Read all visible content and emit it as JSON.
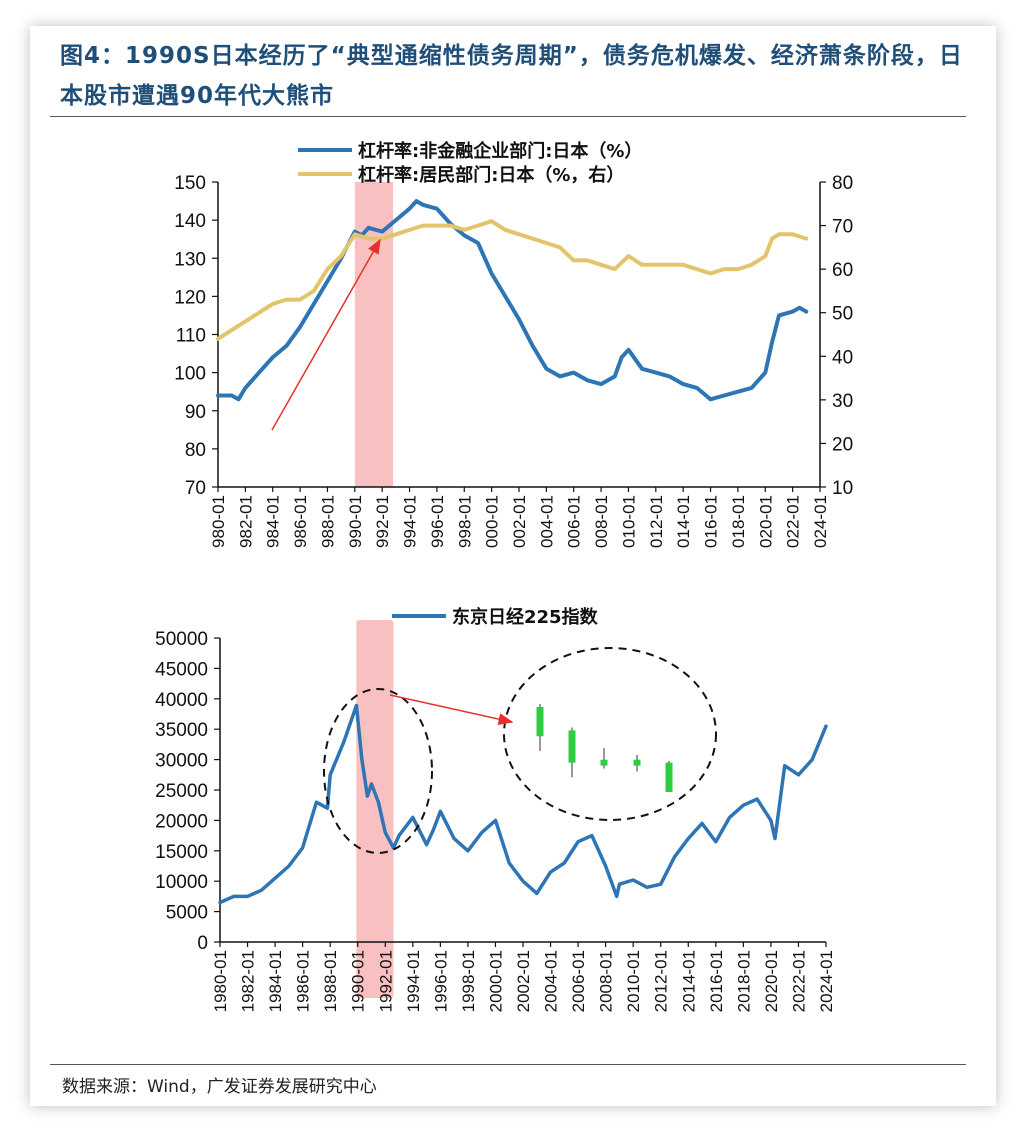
{
  "title": "图4：1990S日本经历了“典型通缩性债务周期”，债务危机爆发、经济萧条阶段，日本股市遭遇90年代大熊市",
  "source": "数据来源：Wind，广发证券发展研究中心",
  "colors": {
    "blue": "#2e75b6",
    "gold": "#e2c46a",
    "highlight": "#f8c0c0",
    "arrow": "#e8302a",
    "title": "#1f4e79",
    "candle": "#2ecc40"
  },
  "chart_data": [
    {
      "type": "line",
      "legend": [
        "杠杆率:非金融企业部门:日本（%）",
        "杠杆率:居民部门:日本（%，右）"
      ],
      "left_ticks": [
        "150",
        "140",
        "130",
        "120",
        "110",
        "100",
        "90",
        "80",
        "70"
      ],
      "right_ticks": [
        "80",
        "70",
        "60",
        "50",
        "40",
        "30",
        "20",
        "10"
      ],
      "ylim_left": [
        70,
        150
      ],
      "ylim_right": [
        10,
        80
      ],
      "xlim": [
        1980,
        2024
      ],
      "x_ticks": [
        "980-01",
        "982-01",
        "984-01",
        "986-01",
        "988-01",
        "990-01",
        "992-01",
        "994-01",
        "996-01",
        "998-01",
        "000-01",
        "002-01",
        "004-01",
        "006-01",
        "008-01",
        "010-01",
        "012-01",
        "014-01",
        "016-01",
        "018-01",
        "020-01",
        "022-01",
        "024-01"
      ],
      "highlight_range": [
        1990.0,
        1992.8
      ],
      "series": [
        {
          "name": "杠杆率:非金融企业部门:日本（%）",
          "axis": "left",
          "color": "#2e75b6",
          "x": [
            1980,
            1981,
            1981.5,
            1982,
            1983,
            1984,
            1985,
            1986,
            1987,
            1988,
            1989,
            1990,
            1990.5,
            1991,
            1992,
            1993,
            1994,
            1994.5,
            1995,
            1996,
            1997,
            1998,
            1999,
            2000,
            2001,
            2002,
            2003,
            2004,
            2005,
            2006,
            2007,
            2008,
            2009,
            2009.5,
            2010,
            2011,
            2012,
            2013,
            2014,
            2015,
            2016,
            2017,
            2018,
            2019,
            2020,
            2020.5,
            2021,
            2022,
            2022.5,
            2023
          ],
          "y": [
            94,
            94,
            93,
            96,
            100,
            104,
            107,
            112,
            118,
            124,
            130,
            137,
            136,
            138,
            137,
            140,
            143,
            145,
            144,
            143,
            139,
            136,
            134,
            126,
            120,
            114,
            107,
            101,
            99,
            100,
            98,
            97,
            99,
            104,
            106,
            101,
            100,
            99,
            97,
            96,
            93,
            94,
            95,
            96,
            100,
            108,
            115,
            116,
            117,
            116
          ]
        },
        {
          "name": "杠杆率:居民部门:日本（%，右）",
          "axis": "right",
          "color": "#e2c46a",
          "x": [
            1980,
            1981,
            1982,
            1983,
            1984,
            1985,
            1986,
            1987,
            1988,
            1989,
            1990,
            1991,
            1992,
            1993,
            1994,
            1995,
            1996,
            1997,
            1998,
            1999,
            2000,
            2001,
            2002,
            2003,
            2004,
            2005,
            2006,
            2007,
            2008,
            2009,
            2010,
            2011,
            2012,
            2013,
            2014,
            2015,
            2016,
            2017,
            2018,
            2019,
            2020,
            2020.5,
            2021,
            2022,
            2023
          ],
          "y": [
            44,
            46,
            48,
            50,
            52,
            53,
            53,
            55,
            60,
            63,
            68,
            67,
            67,
            68,
            69,
            70,
            70,
            70,
            69,
            70,
            71,
            69,
            68,
            67,
            66,
            65,
            62,
            62,
            61,
            60,
            63,
            61,
            61,
            61,
            61,
            60,
            59,
            60,
            60,
            61,
            63,
            67,
            68,
            68,
            67
          ]
        }
      ]
    },
    {
      "type": "line",
      "legend": [
        "东京日经225指数"
      ],
      "left_ticks": [
        "50000",
        "45000",
        "40000",
        "35000",
        "30000",
        "25000",
        "20000",
        "15000",
        "10000",
        "5000",
        "0"
      ],
      "ylim": [
        0,
        50000
      ],
      "xlim": [
        1980,
        2024
      ],
      "x_ticks": [
        "1980-01",
        "1982-01",
        "1984-01",
        "1986-01",
        "1988-01",
        "1990-01",
        "1992-01",
        "1994-01",
        "1996-01",
        "1998-01",
        "2000-01",
        "2002-01",
        "2004-01",
        "2006-01",
        "2008-01",
        "2010-01",
        "2012-01",
        "2014-01",
        "2016-01",
        "2018-01",
        "2020-01",
        "2022-01",
        "2024-01"
      ],
      "highlight_range": [
        1989.9,
        1992.6
      ],
      "series": [
        {
          "name": "东京日经225指数",
          "color": "#2e75b6",
          "x": [
            1980,
            1981,
            1982,
            1983,
            1984,
            1985,
            1986,
            1987,
            1987.8,
            1988,
            1989,
            1989.9,
            1990.3,
            1990.7,
            1991,
            1991.5,
            1992,
            1992.6,
            1993,
            1994,
            1995,
            1995.5,
            1996,
            1997,
            1998,
            1999,
            2000,
            2001,
            2002,
            2003,
            2004,
            2005,
            2006,
            2007,
            2008,
            2008.8,
            2009,
            2010,
            2011,
            2012,
            2013,
            2014,
            2015,
            2016,
            2017,
            2018,
            2019,
            2020,
            2020.3,
            2021,
            2022,
            2023,
            2024
          ],
          "y": [
            6500,
            7500,
            7500,
            8500,
            10500,
            12500,
            15500,
            23000,
            22000,
            27500,
            33000,
            38900,
            30000,
            24000,
            26000,
            23000,
            18000,
            15500,
            17500,
            20500,
            16000,
            18500,
            21500,
            17000,
            15000,
            18000,
            20000,
            13000,
            10000,
            8000,
            11500,
            13000,
            16500,
            17500,
            12500,
            7500,
            9500,
            10200,
            9000,
            9500,
            14000,
            17000,
            19500,
            16500,
            20500,
            22500,
            23500,
            20000,
            17000,
            29000,
            27500,
            30000,
            35500
          ]
        }
      ],
      "candles": [
        {
          "open": 39000,
          "close": 34000,
          "high": 39500,
          "low": 31500
        },
        {
          "open": 35000,
          "close": 29500,
          "high": 35500,
          "low": 27000
        },
        {
          "open": 30000,
          "close": 29000,
          "high": 32000,
          "low": 28500
        },
        {
          "open": 30000,
          "close": 29000,
          "high": 30800,
          "low": 28000
        },
        {
          "open": 29500,
          "close": 24500,
          "high": 29800,
          "low": 24500
        }
      ]
    }
  ]
}
